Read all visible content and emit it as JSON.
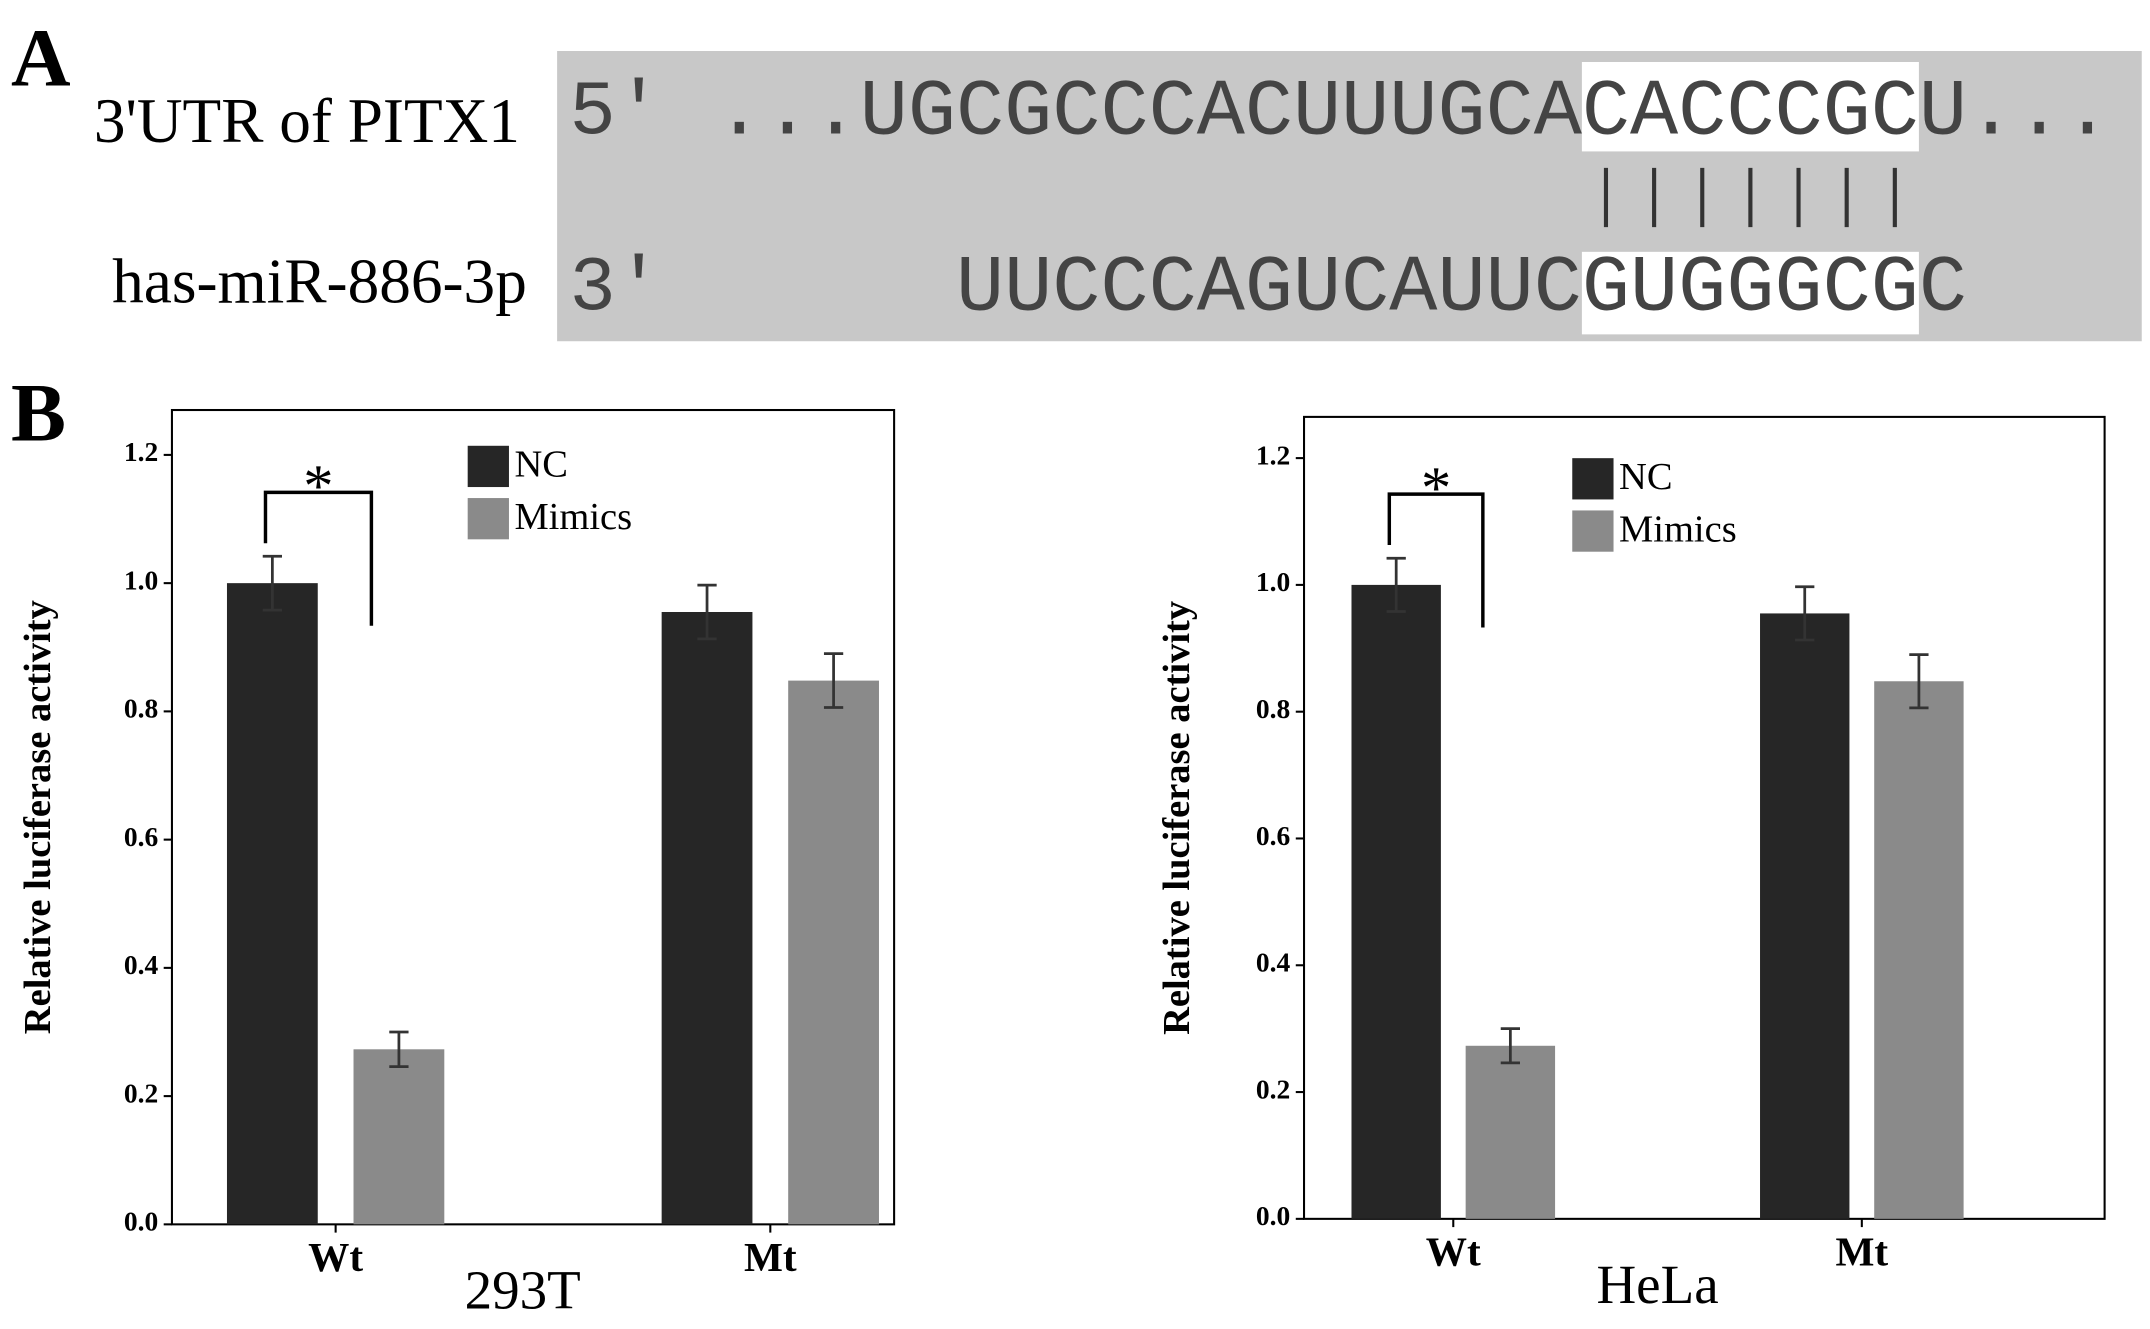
{
  "panel_a": {
    "label": "A",
    "utr_label": "3'UTR of PITX1",
    "mirna_label": "has-miR-886-3p",
    "utr_end": "5'",
    "mirna_end": "3'",
    "utr_sequence": [
      "...UGCGCCCACUUUGCA",
      "CACCCGC",
      "U..."
    ],
    "mirna_sequence": [
      "UUCCCAGUCAUUC",
      "GUGGGCG",
      "C"
    ]
  },
  "panel_b": {
    "label": "B"
  },
  "chart_data": [
    {
      "type": "bar",
      "ylabel": "Relative luciferase activity",
      "xlabel": "293T",
      "categories": [
        "Wt",
        "Mt"
      ],
      "series": [
        {
          "name": "NC",
          "color": "#262626",
          "values": [
            1.0,
            0.955
          ],
          "errors": [
            0.042,
            0.042
          ]
        },
        {
          "name": "Mimics",
          "color": "#8a8a8a",
          "values": [
            0.273,
            0.848
          ],
          "errors": [
            0.027,
            0.042
          ]
        }
      ],
      "ylim": [
        0,
        1.27
      ],
      "yticks": [
        {
          "value": 0,
          "label": "0.0"
        },
        0.2,
        0.4,
        0.6,
        0.8,
        {
          "value": 1,
          "label": "1.0"
        },
        1.2
      ],
      "annotation": "*",
      "legend": "top-center"
    },
    {
      "type": "bar",
      "ylabel": "Relative luciferase activity",
      "xlabel": "HeLa",
      "categories": [
        "Wt",
        "Mt"
      ],
      "series": [
        {
          "name": "NC",
          "color": "#262626",
          "values": [
            1.0,
            0.955
          ],
          "errors": [
            0.042,
            0.042
          ]
        },
        {
          "name": "Mimics",
          "color": "#8a8a8a",
          "values": [
            0.273,
            0.848
          ],
          "errors": [
            0.027,
            0.042
          ]
        }
      ],
      "ylim": [
        0,
        1.265
      ],
      "yticks": [
        {
          "value": 0,
          "label": "0.0"
        },
        0.2,
        0.4,
        0.6,
        0.8,
        {
          "value": 1,
          "label": "1.0"
        },
        1.2
      ],
      "annotation": "*",
      "legend": "top-center"
    }
  ]
}
